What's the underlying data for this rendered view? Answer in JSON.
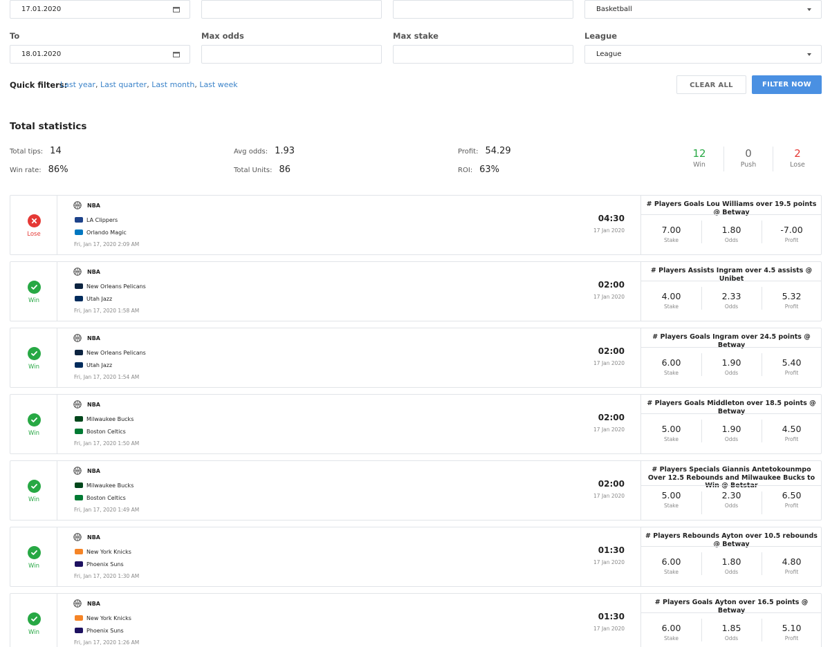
{
  "filters": {
    "from_value": "17.01.2020",
    "to_label": "To",
    "to_value": "18.01.2020",
    "max_odds_label": "Max odds",
    "max_stake_label": "Max stake",
    "league_label": "League",
    "sport_value": "Basketball",
    "league_value": "League"
  },
  "quick_filters": {
    "label": "Quick filters:",
    "links": [
      "Last year",
      "Last quarter",
      "Last month",
      "Last week"
    ]
  },
  "buttons": {
    "clear": "CLEAR ALL",
    "filter": "FILTER NOW"
  },
  "stats": {
    "title": "Total statistics",
    "total_tips_label": "Total tips:",
    "total_tips": "14",
    "win_rate_label": "Win rate:",
    "win_rate": "86%",
    "avg_odds_label": "Avg odds:",
    "avg_odds": "1.93",
    "total_units_label": "Total Units:",
    "total_units": "86",
    "profit_label": "Profit:",
    "profit": "54.29",
    "roi_label": "ROI:",
    "roi": "63%"
  },
  "summary": {
    "win": "12",
    "win_label": "Win",
    "push": "0",
    "push_label": "Push",
    "lose": "2",
    "lose_label": "Lose"
  },
  "colors": {
    "win": "#27a844",
    "lose": "#e53935",
    "accent": "#4a90e2",
    "link": "#3b83c9"
  },
  "market_labels": {
    "stake": "Stake",
    "odds": "Odds",
    "profit": "Profit"
  },
  "tips": [
    {
      "result": "Lose",
      "league": "NBA",
      "team1": "LA Clippers",
      "team2": "Orlando Magic",
      "date": "Fri, Jan 17, 2020 2:09 AM",
      "time": "04:30",
      "day": "17 Jan 2020",
      "market": "# Players Goals Lou Williams over 19.5 points @ Betway",
      "stake": "7.00",
      "odds": "1.80",
      "profit": "-7.00"
    },
    {
      "result": "Win",
      "league": "NBA",
      "team1": "New Orleans Pelicans",
      "team2": "Utah Jazz",
      "date": "Fri, Jan 17, 2020 1:58 AM",
      "time": "02:00",
      "day": "17 Jan 2020",
      "market": "# Players Assists Ingram over 4.5 assists @ Unibet",
      "stake": "4.00",
      "odds": "2.33",
      "profit": "5.32"
    },
    {
      "result": "Win",
      "league": "NBA",
      "team1": "New Orleans Pelicans",
      "team2": "Utah Jazz",
      "date": "Fri, Jan 17, 2020 1:54 AM",
      "time": "02:00",
      "day": "17 Jan 2020",
      "market": "# Players Goals Ingram over 24.5 points @ Betway",
      "stake": "6.00",
      "odds": "1.90",
      "profit": "5.40"
    },
    {
      "result": "Win",
      "league": "NBA",
      "team1": "Milwaukee Bucks",
      "team2": "Boston Celtics",
      "date": "Fri, Jan 17, 2020 1:50 AM",
      "time": "02:00",
      "day": "17 Jan 2020",
      "market": "# Players Goals Middleton over 18.5 points @ Betway",
      "stake": "5.00",
      "odds": "1.90",
      "profit": "4.50"
    },
    {
      "result": "Win",
      "league": "NBA",
      "team1": "Milwaukee Bucks",
      "team2": "Boston Celtics",
      "date": "Fri, Jan 17, 2020 1:49 AM",
      "time": "02:00",
      "day": "17 Jan 2020",
      "market": "# Players Specials Giannis Antetokounmpo Over 12.5 Rebounds and Milwaukee Bucks to Win @ Betstar",
      "stake": "5.00",
      "odds": "2.30",
      "profit": "6.50"
    },
    {
      "result": "Win",
      "league": "NBA",
      "team1": "New York Knicks",
      "team2": "Phoenix Suns",
      "date": "Fri, Jan 17, 2020 1:30 AM",
      "time": "01:30",
      "day": "17 Jan 2020",
      "market": "# Players Rebounds Ayton over 10.5 rebounds @ Betway",
      "stake": "6.00",
      "odds": "1.80",
      "profit": "4.80"
    },
    {
      "result": "Win",
      "league": "NBA",
      "team1": "New York Knicks",
      "team2": "Phoenix Suns",
      "date": "Fri, Jan 17, 2020 1:26 AM",
      "time": "01:30",
      "day": "17 Jan 2020",
      "market": "# Players Goals Ayton over 16.5 points @ Betway",
      "stake": "6.00",
      "odds": "1.85",
      "profit": "5.10"
    }
  ]
}
